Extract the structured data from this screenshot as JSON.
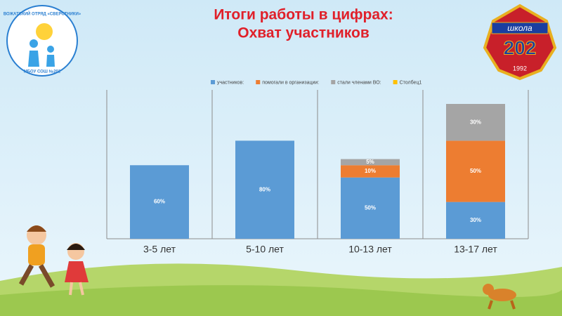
{
  "chart_data": {
    "type": "bar",
    "stacked": true,
    "title": "Итоги работы в цифрах:",
    "subtitle": "Охват участников",
    "categories": [
      "3-5 лет",
      "5-10 лет",
      "10-13 лет",
      "13-17 лет"
    ],
    "series": [
      {
        "name": "участников:",
        "color": "#5b9bd5",
        "values": [
          60,
          80,
          50,
          30
        ],
        "value_labels": [
          "60%",
          "80%",
          "50%",
          "30%"
        ]
      },
      {
        "name": "помогали в организации:",
        "color": "#ed7d31",
        "values": [
          null,
          null,
          10,
          50
        ],
        "value_labels": [
          null,
          null,
          "10%",
          "50%"
        ]
      },
      {
        "name": "стали членами ВО:",
        "color": "#a5a5a5",
        "values": [
          null,
          null,
          5,
          30
        ],
        "value_labels": [
          null,
          null,
          "5%",
          "30%"
        ]
      },
      {
        "name": "Столбец1",
        "color": "#ffc000",
        "values": [
          null,
          null,
          null,
          null
        ]
      }
    ],
    "legend": "top",
    "grid": true
  },
  "logos": {
    "left": {
      "top_text": "ВОЖАТСКИЙ ОТРЯД «СВЕРСТНИКИ»",
      "bottom_text": "МБОУ СОШ №202"
    },
    "right": {
      "banner": "школа",
      "number": "202",
      "year": "1992"
    }
  }
}
